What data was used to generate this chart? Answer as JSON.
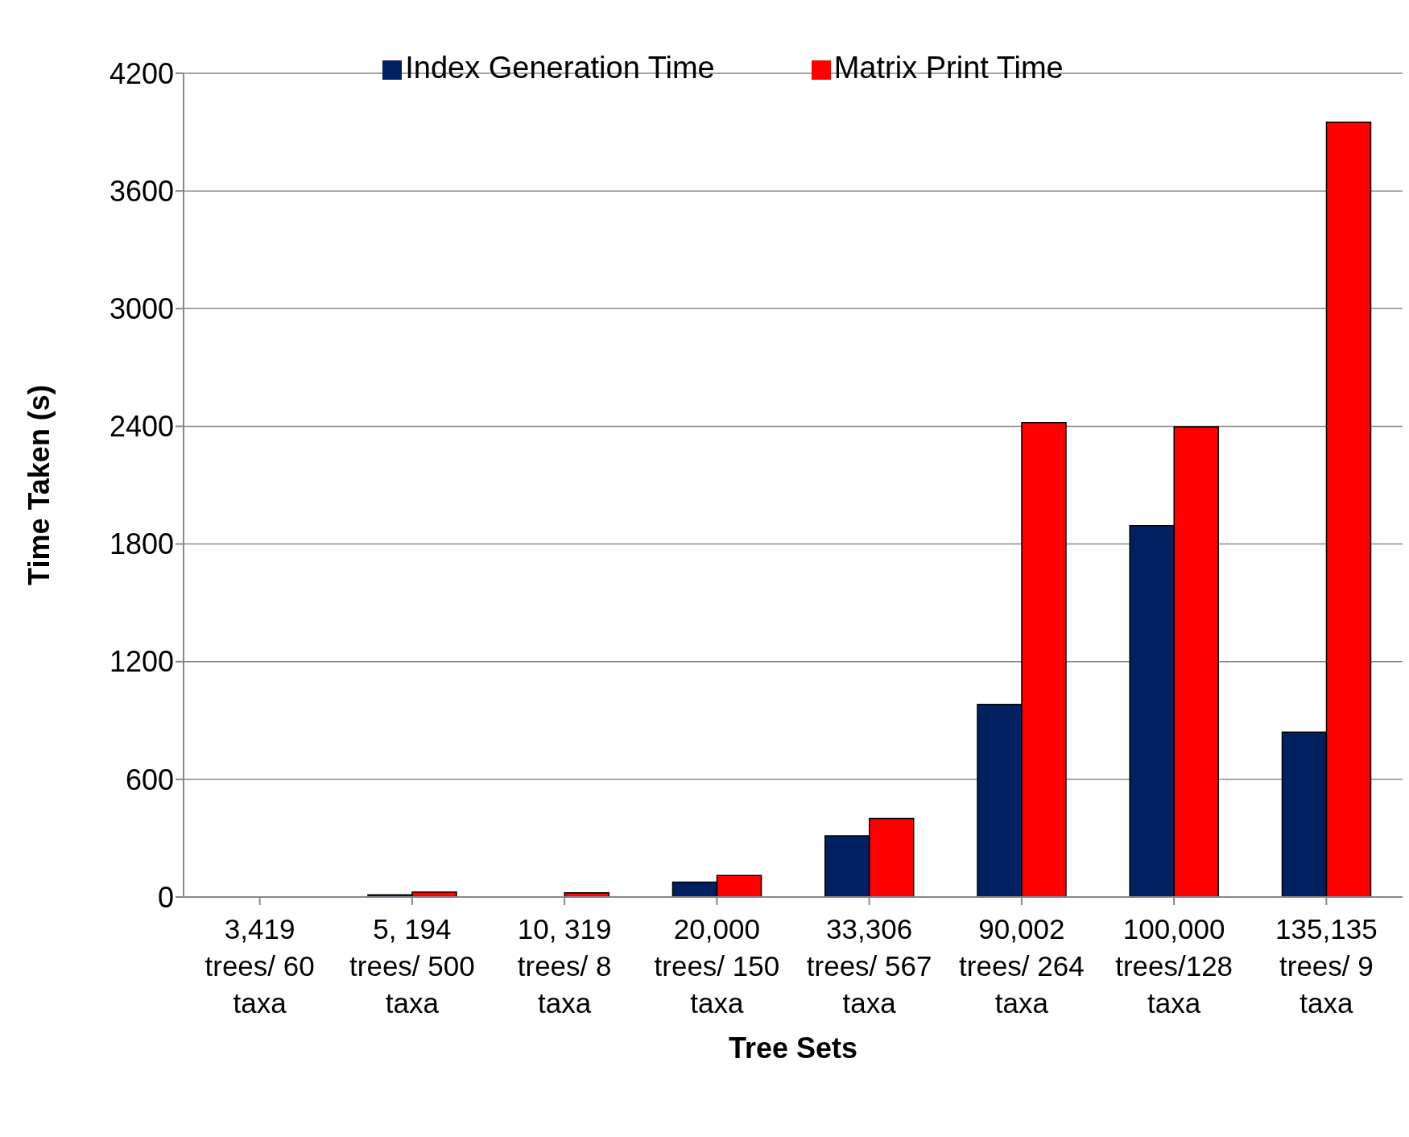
{
  "chart_data": {
    "type": "bar",
    "xlabel": "Tree Sets",
    "ylabel": "Time Taken (s)",
    "categories": [
      "3,419\ntrees/ 60\ntaxa",
      "5, 194\ntrees/ 500\ntaxa",
      "10, 319\ntrees/ 8\ntaxa",
      "20,000\ntrees/ 150\ntaxa",
      "33,306\ntrees/ 567\ntaxa",
      "90,002\ntrees/ 264\ntaxa",
      "100,000\ntrees/128\ntaxa",
      "135,135\ntrees/ 9\ntaxa"
    ],
    "series": [
      {
        "name": "Index Generation Time",
        "color": "#002060",
        "values": [
          null,
          11,
          null,
          76,
          312,
          982,
          1894,
          841
        ]
      },
      {
        "name": "Matrix Print Time",
        "color": "#ff0000",
        "values": [
          null,
          26,
          22,
          110,
          400,
          2419,
          2398,
          3951
        ]
      }
    ],
    "ylim": [
      0,
      4200
    ],
    "yticks": [
      0,
      600,
      1200,
      1800,
      2400,
      3000,
      3600,
      4200
    ],
    "grid": "y",
    "legend": "top"
  }
}
